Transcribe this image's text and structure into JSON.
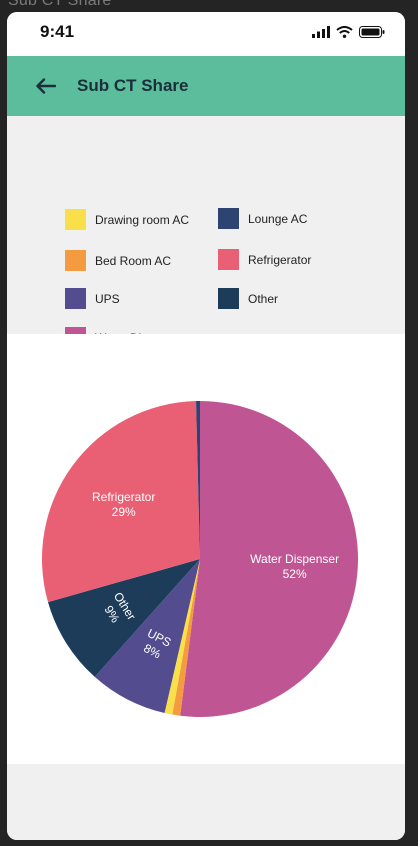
{
  "window": {
    "ghost_title": "Sub CT Share"
  },
  "status_bar": {
    "time": "9:41"
  },
  "header": {
    "title": "Sub CT Share"
  },
  "legend": [
    {
      "label": "Drawing room AC",
      "color": "#f9e04a"
    },
    {
      "label": "Lounge AC",
      "color": "#2d4372"
    },
    {
      "label": "Bed Room AC",
      "color": "#f49a3f"
    },
    {
      "label": "Refrigerator",
      "color": "#e96075"
    },
    {
      "label": "UPS",
      "color": "#534d90"
    },
    {
      "label": "Other",
      "color": "#1d3c5a"
    },
    {
      "label": "Water Dispenser",
      "color": "#bf5693"
    }
  ],
  "chart_data": {
    "type": "pie",
    "start_angle_deg": 0,
    "slices": [
      {
        "name": "Water Dispenser",
        "value": 52,
        "label": "Water Dispenser",
        "pct": "52%",
        "color": "#bf5693",
        "show_label": true
      },
      {
        "name": "Bed Room AC",
        "value": 0.8,
        "color": "#f49a3f",
        "show_label": false
      },
      {
        "name": "Drawing room AC",
        "value": 0.8,
        "color": "#f9e04a",
        "show_label": false
      },
      {
        "name": "UPS",
        "value": 8,
        "label": "UPS",
        "pct": "8%",
        "color": "#534d90",
        "show_label": true
      },
      {
        "name": "Other",
        "value": 9,
        "label": "Other",
        "pct": "9%",
        "color": "#1d3c5a",
        "show_label": true
      },
      {
        "name": "Refrigerator",
        "value": 29,
        "label": "Refrigerator",
        "pct": "29%",
        "color": "#e96075",
        "show_label": true
      },
      {
        "name": "Lounge AC",
        "value": 0.4,
        "color": "#2d4372",
        "show_label": false
      }
    ]
  }
}
